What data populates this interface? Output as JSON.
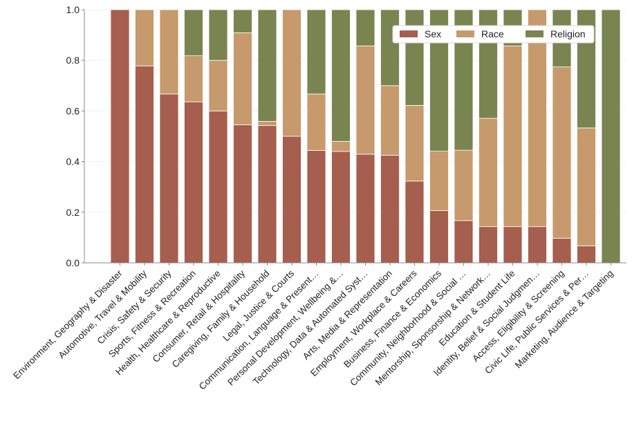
{
  "chart_data": {
    "type": "bar",
    "stacked": true,
    "title": "",
    "xlabel": "",
    "ylabel": "",
    "ylim": [
      0,
      1
    ],
    "yticks": [
      "0.0",
      "0.2",
      "0.4",
      "0.6",
      "0.8",
      "1.0"
    ],
    "grid": "horizontal",
    "legend_position": "top-right",
    "categories": [
      "Environment, Geography & Disaster",
      "Automotive, Travel & Mobility",
      "Crisis, Safety & Security",
      "Sports, Fitness & Recreation",
      "Health, Healthcare & Reproductive",
      "Consumer, Retail & Hospitality",
      "Caregiving, Family & Household",
      "Legal, Justice & Courts",
      "Communication, Language & Present…",
      "Personal Development, Wellbeing &…",
      "Technology, Data & Automated Syst…",
      "Arts, Media & Representation",
      "Employment, Workplace & Careers",
      "Business, Finance & Economics",
      "Community, Neighborhood & Social …",
      "Mentorship, Sponsorship & Network…",
      "Education & Student Life",
      "Identity, Belief & Social Judgmen…",
      "Access, Eligibility & Screening",
      "Civic Life, Public Services & Per…",
      "Marketing, Audience & Targeting"
    ],
    "series": [
      {
        "name": "Sex",
        "color": "#a65e4e",
        "values": [
          1.0,
          0.778,
          0.667,
          0.636,
          0.6,
          0.545,
          0.542,
          0.5,
          0.444,
          0.44,
          0.429,
          0.425,
          0.323,
          0.206,
          0.167,
          0.143,
          0.143,
          0.143,
          0.097,
          0.067,
          0.0
        ]
      },
      {
        "name": "Race",
        "color": "#c69a6c",
        "values": [
          0.0,
          0.222,
          0.333,
          0.182,
          0.2,
          0.364,
          0.017,
          0.5,
          0.223,
          0.04,
          0.428,
          0.275,
          0.299,
          0.235,
          0.278,
          0.428,
          0.714,
          0.857,
          0.677,
          0.466,
          0.0
        ]
      },
      {
        "name": "Religion",
        "color": "#7a8450",
        "values": [
          0.0,
          0.0,
          0.0,
          0.182,
          0.2,
          0.091,
          0.441,
          0.0,
          0.333,
          0.52,
          0.143,
          0.3,
          0.378,
          0.559,
          0.555,
          0.429,
          0.143,
          0.0,
          0.226,
          0.467,
          1.0
        ]
      }
    ]
  }
}
